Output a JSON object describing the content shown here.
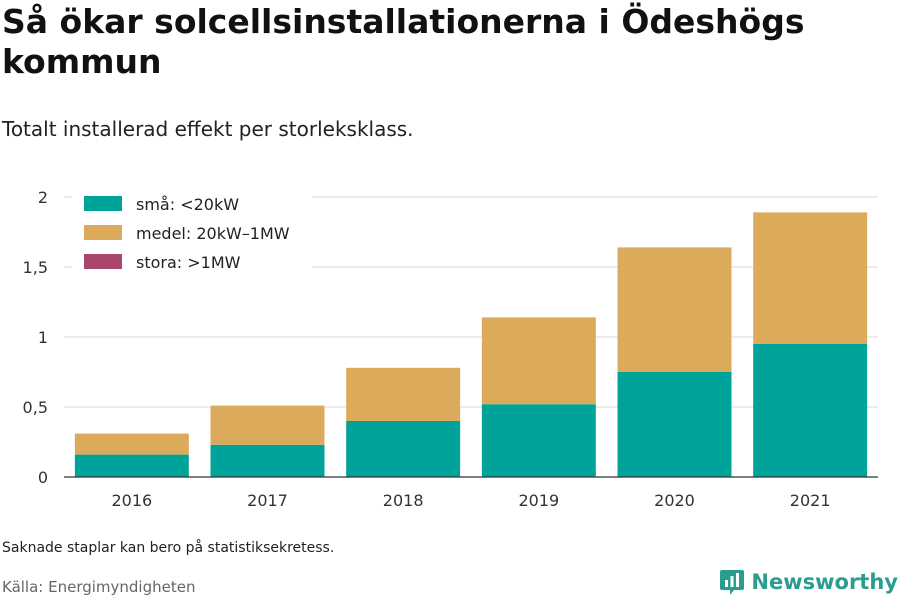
{
  "title": "Så ökar solcellsinstallationerna i Ödeshögs kommun",
  "subtitle": "Totalt installerad effekt per storleksklass.",
  "note": "Saknade staplar kan bero på statistiksekretess.",
  "source": "Källa: Energimyndigheten",
  "brand": "Newsworthy",
  "chart_data": {
    "type": "bar",
    "stacked": true,
    "categories": [
      "2016",
      "2017",
      "2018",
      "2019",
      "2020",
      "2021"
    ],
    "series": [
      {
        "name": "små: <20kW",
        "color": "#00a39a",
        "values": [
          0.16,
          0.23,
          0.4,
          0.52,
          0.75,
          0.95
        ]
      },
      {
        "name": "medel: 20kW–1MW",
        "color": "#dbab5b",
        "values": [
          0.15,
          0.28,
          0.38,
          0.62,
          0.89,
          0.94
        ]
      },
      {
        "name": "stora: >1MW",
        "color": "#a8466b",
        "values": [
          0,
          0,
          0,
          0,
          0,
          0
        ]
      }
    ],
    "ylim": [
      0,
      2
    ],
    "yticks": [
      0,
      0.5,
      1,
      1.5,
      2
    ],
    "ytick_labels": [
      "0",
      "0,5",
      "1",
      "1,5",
      "2"
    ],
    "xlabel": "",
    "ylabel": "",
    "legend_position": "top-left",
    "grid": true
  }
}
